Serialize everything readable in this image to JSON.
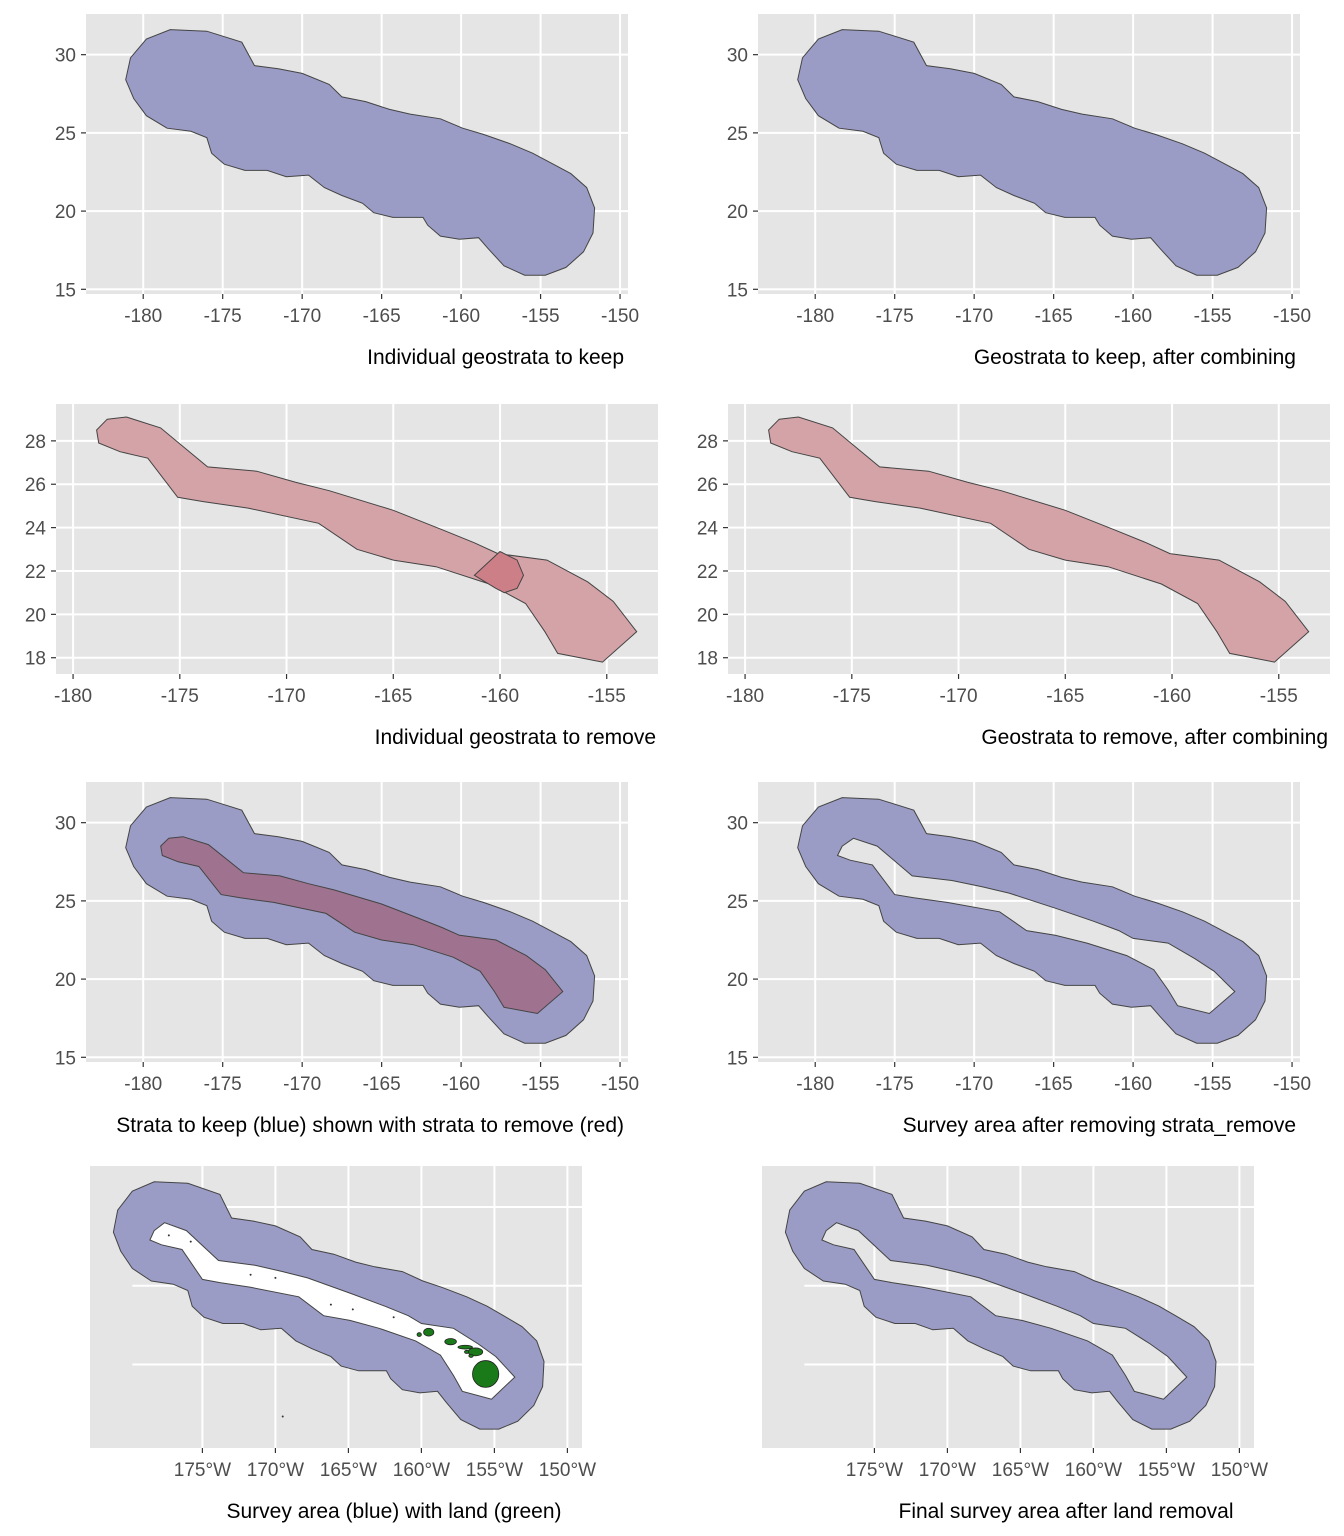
{
  "colors": {
    "panel_bg": "#e5e5e5",
    "grid": "#ffffff",
    "keep_fill": "#9a9cc6",
    "remove_fill": "#d4a3a7",
    "overlap_fill": "#cd7f88",
    "combined_fill": "#9f7390",
    "land_fill": "#1a7a1a",
    "outline": "#444444"
  },
  "panels": [
    {
      "caption": "Individual geostrata to keep",
      "x_ticks": [
        "-180",
        "-175",
        "-170",
        "-165",
        "-160",
        "-155",
        "-150"
      ],
      "y_ticks": [
        "15",
        "20",
        "25",
        "30"
      ]
    },
    {
      "caption": "Geostrata to keep, after combining",
      "x_ticks": [
        "-180",
        "-175",
        "-170",
        "-165",
        "-160",
        "-155",
        "-150"
      ],
      "y_ticks": [
        "15",
        "20",
        "25",
        "30"
      ]
    },
    {
      "caption": "Individual geostrata to remove",
      "x_ticks": [
        "-180",
        "-175",
        "-170",
        "-165",
        "-160",
        "-155"
      ],
      "y_ticks": [
        "18",
        "20",
        "22",
        "24",
        "26",
        "28"
      ]
    },
    {
      "caption": "Geostrata to remove, after combining",
      "x_ticks": [
        "-180",
        "-175",
        "-170",
        "-165",
        "-160",
        "-155"
      ],
      "y_ticks": [
        "18",
        "20",
        "22",
        "24",
        "26",
        "28"
      ]
    },
    {
      "caption": "Strata to keep (blue) shown with strata to remove (red)",
      "x_ticks": [
        "-180",
        "-175",
        "-170",
        "-165",
        "-160",
        "-155",
        "-150"
      ],
      "y_ticks": [
        "15",
        "20",
        "25",
        "30"
      ]
    },
    {
      "caption": "Survey area after removing strata_remove",
      "x_ticks": [
        "-180",
        "-175",
        "-170",
        "-165",
        "-160",
        "-155",
        "-150"
      ],
      "y_ticks": [
        "15",
        "20",
        "25",
        "30"
      ]
    },
    {
      "caption": "Survey area (blue) with land (green)",
      "x_ticks": [
        "175°W",
        "170°W",
        "165°W",
        "160°W",
        "155°W",
        "150°W"
      ],
      "y_ticks": []
    },
    {
      "caption": "Final survey area after land removal",
      "x_ticks": [
        "175°W",
        "170°W",
        "165°W",
        "160°W",
        "155°W",
        "150°W"
      ],
      "y_ticks": []
    }
  ]
}
